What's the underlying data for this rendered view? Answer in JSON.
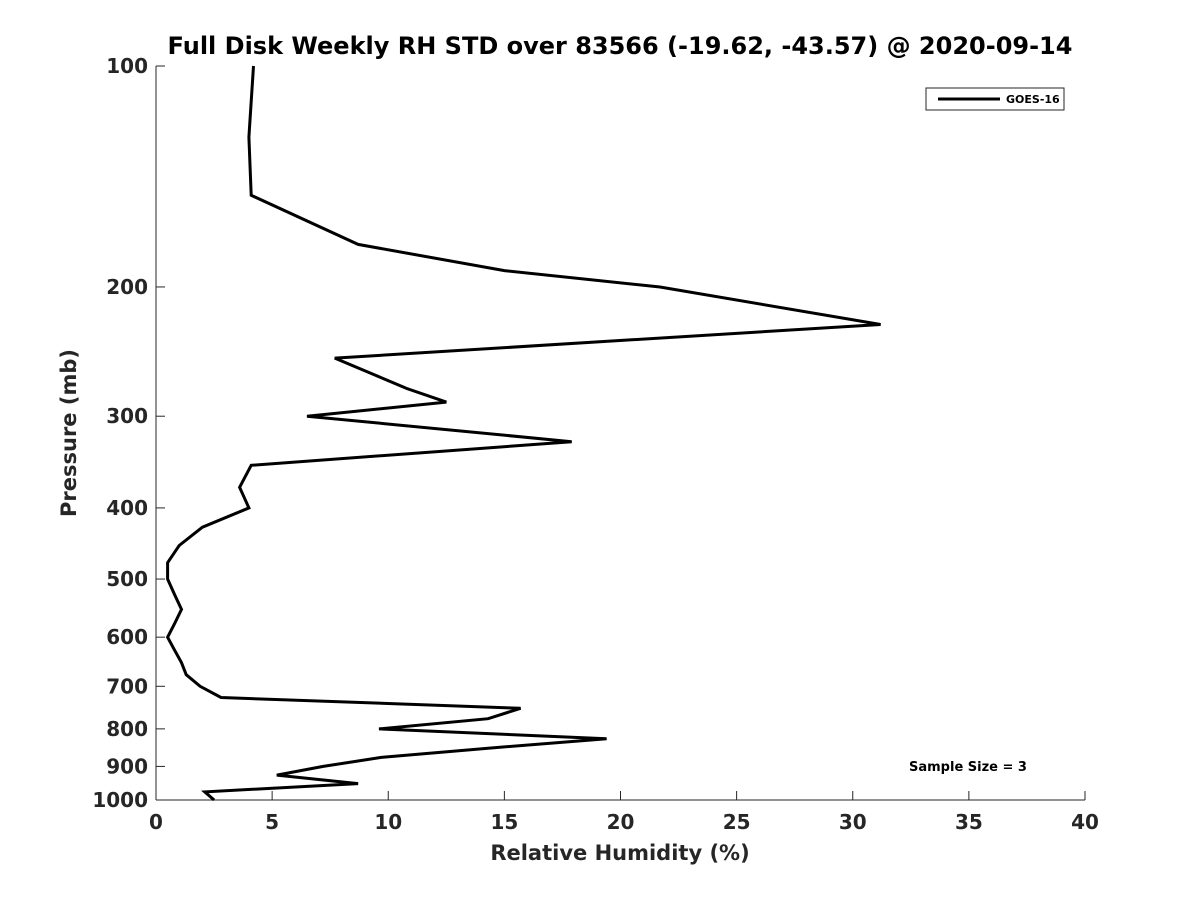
{
  "chart_data": {
    "type": "line",
    "title": "Full Disk Weekly RH STD over 83566 (-19.62, -43.57) @ 2020-09-14",
    "xlabel": "Relative Humidity (%)",
    "ylabel": "Pressure (mb)",
    "xlim": [
      0,
      40
    ],
    "ylim": [
      100,
      1000
    ],
    "y_scale": "log",
    "y_reversed": true,
    "x_ticks": [
      0,
      5,
      10,
      15,
      20,
      25,
      30,
      35,
      40
    ],
    "x_tick_labels": [
      "0",
      "5",
      "10",
      "15",
      "20",
      "25",
      "30",
      "35",
      "40"
    ],
    "y_ticks": [
      100,
      200,
      300,
      400,
      500,
      600,
      700,
      800,
      900,
      1000
    ],
    "y_tick_labels": [
      "100",
      "200",
      "300",
      "400",
      "500",
      "600",
      "700",
      "800",
      "900",
      "1000"
    ],
    "grid": false,
    "legend": {
      "location": "top-right",
      "entries": [
        "GOES-16"
      ]
    },
    "annotation": "Sample Size = 3",
    "series": [
      {
        "name": "GOES-16",
        "color": "#000000",
        "x": [
          4.2,
          4.0,
          4.1,
          8.7,
          15.0,
          21.7,
          31.2,
          7.7,
          10.8,
          12.5,
          6.5,
          17.9,
          4.1,
          3.6,
          4.0,
          2.0,
          1.0,
          0.5,
          0.5,
          0.8,
          1.1,
          0.8,
          0.5,
          0.8,
          1.1,
          1.3,
          1.9,
          2.8,
          15.7,
          14.3,
          9.6,
          19.4,
          14.3,
          9.7,
          7.2,
          5.2,
          8.7,
          2.1,
          2.5
        ],
        "y": [
          100,
          125,
          150,
          175,
          190,
          200,
          225,
          250,
          275,
          287,
          300,
          325,
          350,
          375,
          400,
          425,
          450,
          475,
          500,
          525,
          550,
          575,
          600,
          625,
          650,
          675,
          700,
          725,
          750,
          775,
          800,
          825,
          850,
          875,
          900,
          925,
          950,
          975,
          1000
        ]
      }
    ]
  }
}
